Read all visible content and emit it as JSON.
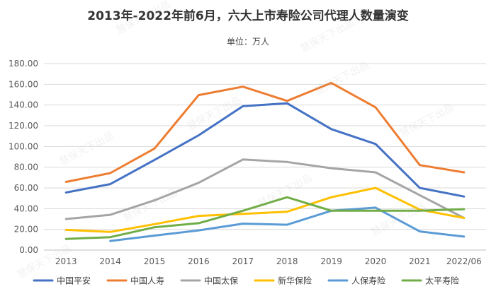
{
  "chart_data": {
    "type": "line",
    "title": "2013年-2022年前6月，六大上市寿险公司代理人数量演变",
    "subtitle": "单位：万人",
    "categories": [
      "2013",
      "2014",
      "2015",
      "2016",
      "2017",
      "2018",
      "2019",
      "2020",
      "2021",
      "2022/06"
    ],
    "ylim": [
      0,
      180
    ],
    "yticks": [
      0,
      20,
      40,
      60,
      80,
      100,
      120,
      140,
      160,
      180
    ],
    "ytick_labels": [
      "0.00",
      "20.00",
      "40.00",
      "60.00",
      "80.00",
      "100.00",
      "120.00",
      "140.00",
      "160.00",
      "180.00"
    ],
    "grid": true,
    "legend_position": "bottom",
    "series": [
      {
        "name": "中国平安",
        "color": "#4472C4",
        "values": [
          55.6,
          63.7,
          87.0,
          110.8,
          138.9,
          141.7,
          116.7,
          102.4,
          60.0,
          51.7
        ]
      },
      {
        "name": "中国人寿",
        "color": "#ED7D31",
        "values": [
          65.8,
          74.3,
          98.0,
          149.6,
          157.7,
          144.0,
          161.3,
          137.8,
          82.0,
          75.0
        ]
      },
      {
        "name": "中国太保",
        "color": "#A5A5A5",
        "values": [
          30.0,
          34.0,
          48.0,
          65.0,
          87.4,
          85.0,
          79.0,
          75.0,
          53.0,
          31.0
        ]
      },
      {
        "name": "新华保险",
        "color": "#FFC000",
        "values": [
          19.5,
          17.5,
          25.0,
          33.0,
          35.0,
          37.0,
          51.0,
          60.0,
          39.0,
          31.0
        ]
      },
      {
        "name": "人保寿险",
        "color": "#5B9BD5",
        "values": [
          null,
          8.8,
          14.0,
          19.0,
          25.5,
          24.5,
          38.0,
          41.0,
          18.0,
          13.0
        ]
      },
      {
        "name": "太平寿险",
        "color": "#70AD47",
        "values": [
          10.8,
          12.5,
          22.0,
          26.0,
          38.0,
          51.0,
          38.0,
          38.0,
          38.0,
          39.5
        ]
      }
    ]
  },
  "watermark_text": "慧保天下出品",
  "colors": {
    "grid": "#d9d9d9",
    "axis_text": "#595959"
  }
}
